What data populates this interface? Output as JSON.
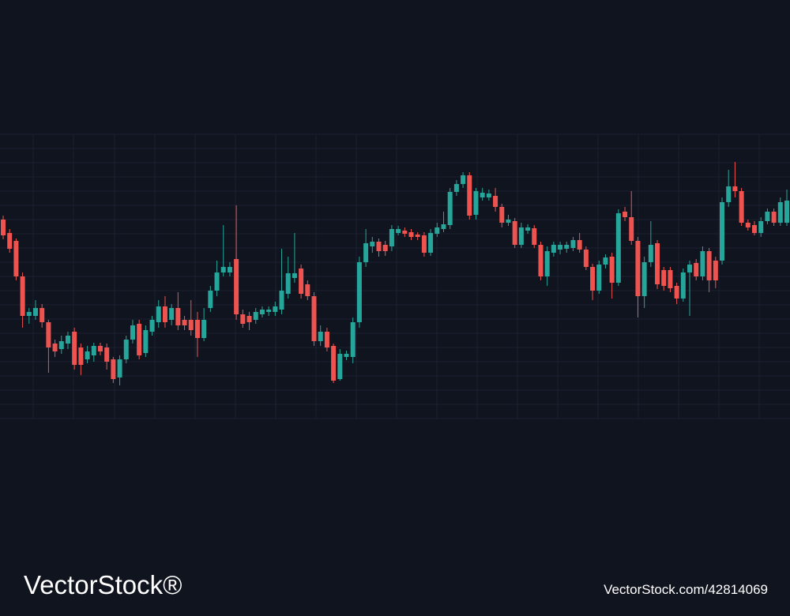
{
  "chart_data": {
    "type": "candlestick",
    "open": [
      252,
      235,
      225,
      180,
      130,
      130,
      140,
      122,
      95,
      88,
      95,
      110,
      90,
      75,
      80,
      92,
      90,
      75,
      52,
      75,
      100,
      120,
      83,
      110,
      122,
      142,
      125,
      140,
      125,
      125,
      125,
      102,
      140,
      162,
      185,
      185,
      202,
      132,
      130,
      125,
      132,
      135,
      135,
      138,
      158,
      178,
      190,
      170,
      155,
      98,
      110,
      92,
      50,
      78,
      78,
      122,
      198,
      218,
      224,
      220,
      218,
      235,
      238,
      236,
      233,
      232,
      210,
      234,
      240,
      245,
      287,
      297,
      308,
      258,
      280,
      280,
      282,
      268,
      248,
      250,
      220,
      238,
      241,
      220,
      180,
      210,
      214,
      215,
      216,
      226,
      214,
      192,
      162,
      195,
      205,
      172,
      262,
      255,
      225,
      155,
      198,
      222,
      188,
      188,
      168,
      152,
      185,
      197,
      180,
      212,
      200,
      200,
      274,
      294,
      288,
      248,
      245,
      235,
      250,
      262,
      248,
      248
    ],
    "high": [
      257,
      240,
      228,
      185,
      140,
      150,
      145,
      125,
      100,
      105,
      110,
      115,
      95,
      92,
      96,
      96,
      95,
      78,
      80,
      105,
      125,
      125,
      118,
      130,
      150,
      155,
      145,
      160,
      130,
      150,
      135,
      140,
      168,
      200,
      245,
      198,
      270,
      138,
      135,
      140,
      142,
      142,
      148,
      215,
      205,
      235,
      195,
      175,
      160,
      118,
      115,
      95,
      88,
      86,
      128,
      205,
      240,
      230,
      228,
      225,
      245,
      244,
      242,
      240,
      236,
      236,
      240,
      248,
      262,
      292,
      302,
      312,
      312,
      292,
      292,
      290,
      292,
      272,
      258,
      254,
      248,
      246,
      245,
      224,
      218,
      224,
      224,
      224,
      230,
      235,
      218,
      196,
      200,
      208,
      210,
      265,
      268,
      288,
      230,
      205,
      250,
      226,
      192,
      192,
      172,
      190,
      200,
      202,
      218,
      216,
      205,
      280,
      315,
      325,
      292,
      252,
      250,
      255,
      266,
      266,
      280,
      290
    ],
    "low": [
      227,
      210,
      175,
      115,
      120,
      125,
      115,
      58,
      78,
      82,
      88,
      62,
      55,
      70,
      72,
      80,
      62,
      45,
      42,
      70,
      95,
      75,
      78,
      105,
      115,
      115,
      118,
      112,
      112,
      105,
      78,
      98,
      135,
      155,
      180,
      180,
      125,
      115,
      112,
      120,
      128,
      130,
      130,
      132,
      152,
      172,
      152,
      150,
      92,
      92,
      85,
      45,
      48,
      74,
      70,
      115,
      192,
      210,
      205,
      206,
      212,
      232,
      230,
      226,
      226,
      205,
      206,
      230,
      236,
      240,
      282,
      292,
      252,
      252,
      276,
      276,
      262,
      242,
      244,
      216,
      216,
      234,
      216,
      175,
      168,
      205,
      208,
      210,
      212,
      210,
      188,
      150,
      158,
      190,
      152,
      168,
      250,
      220,
      128,
      140,
      192,
      164,
      162,
      160,
      145,
      148,
      130,
      175,
      175,
      160,
      165,
      195,
      268,
      280,
      244,
      238,
      232,
      230,
      246,
      244,
      244,
      244
    ],
    "close": [
      232,
      215,
      180,
      130,
      135,
      140,
      122,
      90,
      85,
      98,
      105,
      68,
      68,
      85,
      92,
      85,
      72,
      50,
      75,
      100,
      118,
      80,
      112,
      125,
      142,
      122,
      140,
      118,
      118,
      112,
      102,
      125,
      162,
      185,
      192,
      192,
      132,
      120,
      122,
      135,
      138,
      138,
      142,
      162,
      184,
      184,
      158,
      155,
      98,
      110,
      90,
      48,
      82,
      82,
      122,
      198,
      222,
      224,
      212,
      212,
      240,
      240,
      234,
      230,
      230,
      210,
      235,
      242,
      246,
      287,
      297,
      308,
      257,
      288,
      286,
      285,
      268,
      248,
      252,
      220,
      242,
      242,
      220,
      180,
      212,
      220,
      220,
      220,
      226,
      214,
      192,
      162,
      195,
      204,
      172,
      260,
      255,
      225,
      155,
      198,
      220,
      170,
      168,
      165,
      152,
      185,
      195,
      180,
      212,
      175,
      175,
      274,
      294,
      288,
      248,
      242,
      235,
      250,
      262,
      248,
      274,
      276
    ],
    "up_color": "#26a69a",
    "down_color": "#ef5350",
    "ylim": [
      0,
      360
    ],
    "yticks": [
      0,
      18,
      36,
      54,
      72,
      90,
      108,
      126,
      144,
      162,
      180,
      198,
      216,
      234,
      252,
      270,
      288,
      306,
      324,
      342,
      360
    ],
    "grid": true
  },
  "watermark": {
    "brand": "VectorStock®",
    "id": "VectorStock.com/42814069"
  }
}
